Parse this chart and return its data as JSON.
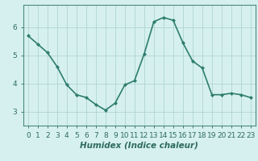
{
  "x": [
    0,
    1,
    2,
    3,
    4,
    5,
    6,
    7,
    8,
    9,
    10,
    11,
    12,
    13,
    14,
    15,
    16,
    17,
    18,
    19,
    20,
    21,
    22,
    23
  ],
  "y": [
    5.7,
    5.4,
    5.1,
    4.6,
    3.95,
    3.6,
    3.5,
    3.25,
    3.05,
    3.3,
    3.95,
    4.1,
    5.05,
    6.2,
    6.35,
    6.25,
    5.45,
    4.8,
    4.55,
    3.6,
    3.6,
    3.65,
    3.6,
    3.5
  ],
  "line_color": "#2e7d6e",
  "marker": "D",
  "marker_size": 2,
  "bg_color": "#d6f0f0",
  "grid_color": "#b0d4d4",
  "xlabel": "Humidex (Indice chaleur)",
  "xlabel_fontsize": 7.5,
  "tick_fontsize": 6.5,
  "ylim": [
    2.5,
    6.8
  ],
  "yticks": [
    3,
    4,
    5,
    6
  ],
  "xticks": [
    0,
    1,
    2,
    3,
    4,
    5,
    6,
    7,
    8,
    9,
    10,
    11,
    12,
    13,
    14,
    15,
    16,
    17,
    18,
    19,
    20,
    21,
    22,
    23
  ],
  "xtick_labels": [
    "0",
    "1",
    "2",
    "3",
    "4",
    "5",
    "6",
    "7",
    "8",
    "9",
    "10",
    "11",
    "12",
    "13",
    "14",
    "15",
    "16",
    "17",
    "18",
    "19",
    "20",
    "21",
    "22",
    "23"
  ],
  "line_width": 1.2,
  "axis_color": "#2e6b5e",
  "spine_color": "#4a8a7a"
}
